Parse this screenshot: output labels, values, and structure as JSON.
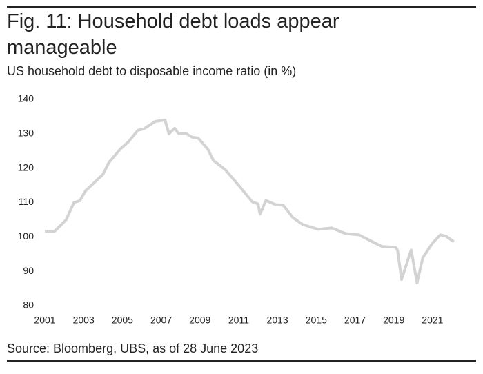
{
  "chart_data": {
    "type": "line",
    "title": "Fig. 11: Household debt loads appear manageable",
    "subtitle": "US household debt to disposable income ratio (in %)",
    "source": "Source: Bloomberg, UBS, as of 28 June 2023",
    "x": [
      2001.0,
      2001.5,
      2002.1,
      2002.5,
      2002.8,
      2003.1,
      2004.0,
      2004.3,
      2004.9,
      2005.3,
      2005.8,
      2006.1,
      2006.7,
      2007.2,
      2007.4,
      2007.7,
      2007.9,
      2008.3,
      2008.6,
      2008.9,
      2009.4,
      2009.7,
      2010.3,
      2011.0,
      2011.7,
      2012.0,
      2012.1,
      2012.4,
      2012.9,
      2013.3,
      2013.8,
      2014.3,
      2015.1,
      2015.8,
      2016.5,
      2017.2,
      2017.9,
      2018.4,
      2019.1,
      2019.2,
      2019.4,
      2019.9,
      2020.2,
      2020.5,
      2021.0,
      2021.4,
      2021.7,
      2022.1
    ],
    "series": [
      {
        "color": "#d3d3d3",
        "values": [
          101.6,
          101.6,
          105,
          110,
          110.5,
          113.4,
          118.2,
          121.6,
          125.6,
          127.6,
          131,
          131.4,
          133.6,
          134,
          130,
          131.6,
          130,
          130,
          129,
          128.8,
          125.6,
          122.2,
          119.6,
          115,
          110.2,
          109.6,
          106.6,
          110.6,
          109.4,
          109.2,
          105.6,
          103.6,
          102.2,
          102.6,
          101,
          100.6,
          98.6,
          97.2,
          97,
          96,
          87.6,
          96.2,
          86.6,
          94,
          98.2,
          100.6,
          100.2,
          98.6
        ]
      }
    ],
    "xlim": [
      2001,
      2022.5
    ],
    "xticks": [
      2001,
      2003,
      2005,
      2007,
      2009,
      2011,
      2013,
      2015,
      2017,
      2019,
      2021
    ],
    "ylim": [
      80,
      140
    ],
    "yticks": [
      80,
      90,
      100,
      110,
      120,
      130,
      140
    ]
  }
}
